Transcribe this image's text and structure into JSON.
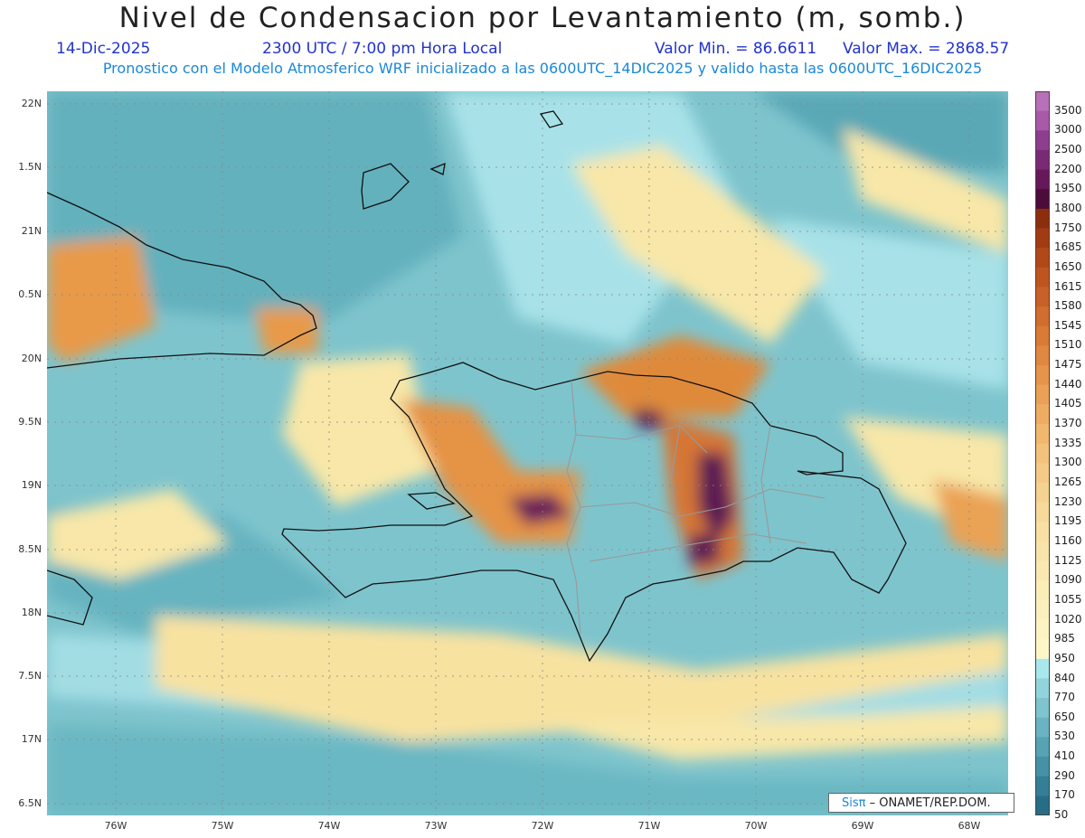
{
  "title": "Nivel de Condensacion por Levantamiento (m, somb.)",
  "date": "14-Dic-2025",
  "time": "2300 UTC / 7:00 pm Hora Local",
  "valor_min": "Valor Min. = 86.6611",
  "valor_max": "Valor Max. = 2868.57",
  "forecast_line": "Pronostico con el Modelo Atmosferico WRF inicializado a las 0600UTC_14DIC2025 y valido hasta las  0600UTC_16DIC2025",
  "lat_labels": [
    "22N",
    "1.5N",
    "21N",
    "0.5N",
    "20N",
    "9.5N",
    "19N",
    "8.5N",
    "18N",
    "7.5N",
    "17N",
    "6.5N"
  ],
  "lon_labels": [
    "76W",
    "75W",
    "74W",
    "73W",
    "72W",
    "71W",
    "70W",
    "69W",
    "68W"
  ],
  "colorbar": {
    "levels": [
      "3500",
      "3000",
      "2500",
      "2200",
      "1950",
      "1800",
      "1750",
      "1685",
      "1650",
      "1615",
      "1580",
      "1545",
      "1510",
      "1475",
      "1440",
      "1405",
      "1370",
      "1335",
      "1300",
      "1265",
      "1230",
      "1195",
      "1160",
      "1125",
      "1090",
      "1055",
      "1020",
      "985",
      "950",
      "840",
      "770",
      "650",
      "530",
      "410",
      "290",
      "170",
      "50"
    ],
    "colors": [
      "#b870b8",
      "#a85aa8",
      "#8e3e8e",
      "#7a2a74",
      "#66185a",
      "#4d0b3a",
      "#8c2e0d",
      "#a33b12",
      "#b24818",
      "#bf5420",
      "#c96027",
      "#d16d2e",
      "#d97a37",
      "#e08741",
      "#e6944b",
      "#eaa157",
      "#eeac63",
      "#f1b76f",
      "#f3c17b",
      "#f5ca86",
      "#f6d290",
      "#f7d99a",
      "#f8dfa3",
      "#f8e4ab",
      "#f9e8b1",
      "#faedb7",
      "#fbf0bd",
      "#fbf3c2",
      "#fdf7c8",
      "#a8e8ec",
      "#92d4dc",
      "#7fc4cf",
      "#6ab3c1",
      "#57a2b3",
      "#4691a5",
      "#357f96",
      "#276d86"
    ]
  },
  "credit": {
    "sis": "Sisπ",
    "rest": "– ONAMET/REP.DOM."
  },
  "colors": {
    "sea": "#7ec4cd",
    "ocean_dark": "#5aaab8",
    "land_warm": "#f6d089",
    "high": "#5b1a52",
    "coast": "#111111",
    "border": "#999999"
  }
}
